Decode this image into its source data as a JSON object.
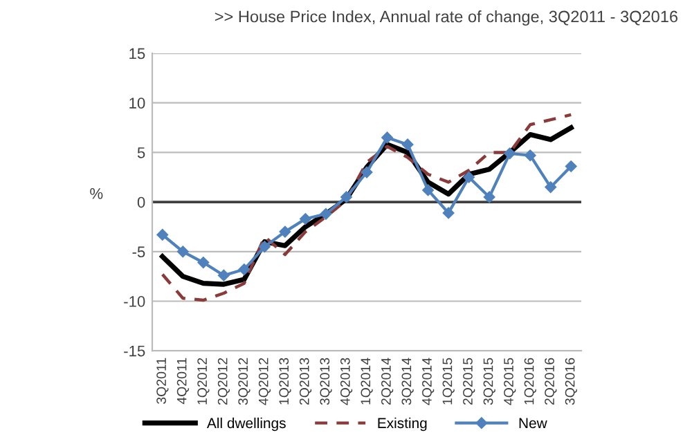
{
  "chart_data": {
    "type": "line",
    "title": ">> House Price Index, Annual rate of change, 3Q2011 - 3Q2016",
    "ylabel": "%",
    "categories": [
      "3Q2011",
      "4Q2011",
      "1Q2012",
      "2Q2012",
      "3Q2012",
      "4Q2012",
      "1Q2013",
      "2Q2013",
      "3Q2013",
      "4Q2013",
      "1Q2014",
      "2Q2014",
      "3Q2014",
      "4Q2014",
      "1Q2015",
      "2Q2015",
      "3Q2015",
      "4Q2015",
      "1Q2016",
      "2Q2016",
      "3Q2016"
    ],
    "series": [
      {
        "name": "All dwellings",
        "color": "#000000",
        "line_style": "solid",
        "marker": "none",
        "values": [
          -5.5,
          -7.5,
          -8.2,
          -8.3,
          -7.8,
          -4,
          -4.4,
          -2.5,
          -1.2,
          0.3,
          3.5,
          5.8,
          5,
          2,
          0.8,
          2.8,
          3.3,
          5,
          6.8,
          6.3,
          7.5
        ]
      },
      {
        "name": "Existing",
        "color": "#8b3a3a",
        "line_style": "dashed",
        "marker": "none",
        "values": [
          -7.3,
          -9.7,
          -9.9,
          -9.2,
          -8.2,
          -3.5,
          -5.3,
          -3,
          -1.5,
          0.2,
          4,
          5.6,
          4.5,
          2.8,
          2,
          3.2,
          5,
          5,
          7.8,
          8.3,
          8.8
        ]
      },
      {
        "name": "New",
        "color": "#4f81bd",
        "line_style": "solid",
        "marker": "diamond",
        "values": [
          -3.3,
          -5,
          -6.1,
          -7.4,
          -6.8,
          -4.5,
          -3,
          -1.7,
          -1.2,
          0.5,
          3,
          6.5,
          5.8,
          1.2,
          -1.1,
          2.5,
          0.5,
          4.9,
          4.7,
          1.5,
          3.6
        ]
      }
    ],
    "ylim": [
      -15,
      15
    ],
    "yticks": [
      -15,
      -10,
      -5,
      0,
      5,
      10,
      15
    ],
    "grid": "y",
    "legend": "bottom",
    "ref_lines": [
      {
        "axis": "y",
        "value": 0,
        "color": "#404040"
      }
    ]
  }
}
